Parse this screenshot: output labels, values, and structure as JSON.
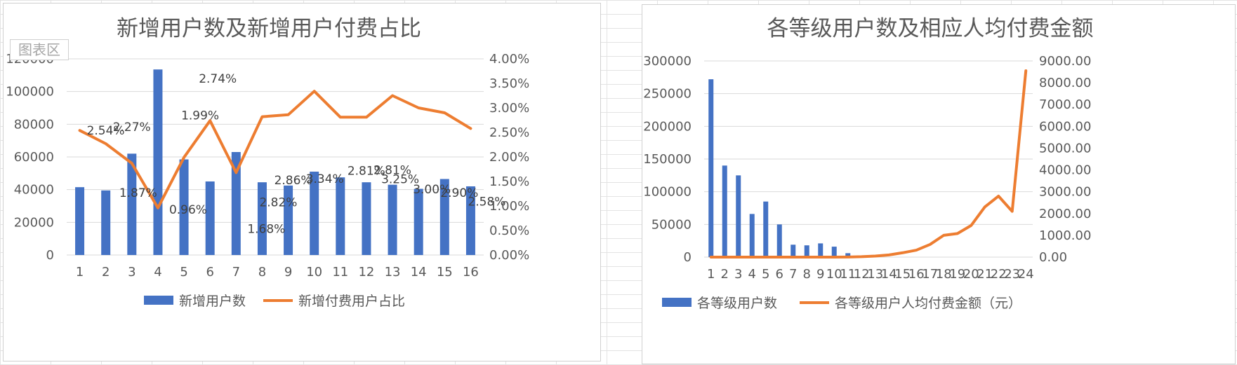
{
  "watermark": "图表区",
  "colors": {
    "bar": "#4472C4",
    "line": "#ED7D31",
    "grid": "#D9D9D9",
    "text": "#595959"
  },
  "chart_data": [
    {
      "type": "bar+line",
      "title": "新增用户数及新增用户付费占比",
      "categories": [
        "1",
        "2",
        "3",
        "4",
        "5",
        "6",
        "7",
        "8",
        "9",
        "10",
        "11",
        "12",
        "13",
        "14",
        "15",
        "16"
      ],
      "series": [
        {
          "name": "新增用户数",
          "type": "bar",
          "axis": "left",
          "values": [
            41500,
            39500,
            62000,
            113500,
            58500,
            45000,
            63000,
            44500,
            42500,
            51000,
            47500,
            44500,
            43000,
            40500,
            46500,
            42000
          ]
        },
        {
          "name": "新增付费用户占比",
          "type": "line",
          "axis": "right",
          "values": [
            2.54,
            2.27,
            1.87,
            0.96,
            1.99,
            2.74,
            1.68,
            2.82,
            2.86,
            3.34,
            2.81,
            2.81,
            3.25,
            3.0,
            2.9,
            2.58
          ],
          "labels": [
            "2.54%",
            "2.27%",
            "1.87%",
            "0.96%",
            "1.99%",
            "2.74%",
            "1.68%",
            "2.82%",
            "2.86%",
            "3.34%",
            "2.81%",
            "2.81%",
            "3.25%",
            "3.00%",
            "2.90%",
            "2.58%"
          ]
        }
      ],
      "y_left": {
        "range": [
          0,
          120000
        ],
        "ticks": [
          "0",
          "20000",
          "40000",
          "60000",
          "80000",
          "100000",
          "120000"
        ]
      },
      "y_right": {
        "range": [
          0,
          4
        ],
        "ticks": [
          "0.00%",
          "0.50%",
          "1.00%",
          "1.50%",
          "2.00%",
          "2.50%",
          "3.00%",
          "3.50%",
          "4.00%"
        ]
      },
      "grid": true,
      "legend": "bottom"
    },
    {
      "type": "bar+line",
      "title": "各等级用户数及相应人均付费金额",
      "categories": [
        "1",
        "2",
        "3",
        "4",
        "5",
        "6",
        "7",
        "8",
        "9",
        "10",
        "11",
        "12",
        "13",
        "14",
        "15",
        "16",
        "17",
        "18",
        "19",
        "20",
        "21",
        "22",
        "23",
        "24"
      ],
      "series": [
        {
          "name": "各等级用户数",
          "type": "bar",
          "axis": "left",
          "values": [
            272000,
            140000,
            125000,
            66000,
            85000,
            50000,
            19000,
            18000,
            21000,
            16000,
            6000,
            0,
            0,
            0,
            0,
            0,
            0,
            0,
            0,
            0,
            0,
            0,
            0,
            0
          ]
        },
        {
          "name": "各等级用户人均付费金额（元）",
          "type": "line",
          "axis": "right",
          "values": [
            0,
            0,
            0,
            0,
            0,
            0,
            0,
            0,
            0,
            0,
            5,
            20,
            50,
            100,
            200,
            320,
            580,
            1000,
            1080,
            1450,
            2300,
            2800,
            2100,
            8550
          ]
        }
      ],
      "y_left": {
        "range": [
          0,
          300000
        ],
        "ticks": [
          "0",
          "50000",
          "100000",
          "150000",
          "200000",
          "250000",
          "300000"
        ]
      },
      "y_right": {
        "range": [
          0,
          9000
        ],
        "ticks": [
          "0.00",
          "1000.00",
          "2000.00",
          "3000.00",
          "4000.00",
          "5000.00",
          "6000.00",
          "7000.00",
          "8000.00",
          "9000.00"
        ]
      },
      "grid": true,
      "legend": "bottom"
    }
  ]
}
